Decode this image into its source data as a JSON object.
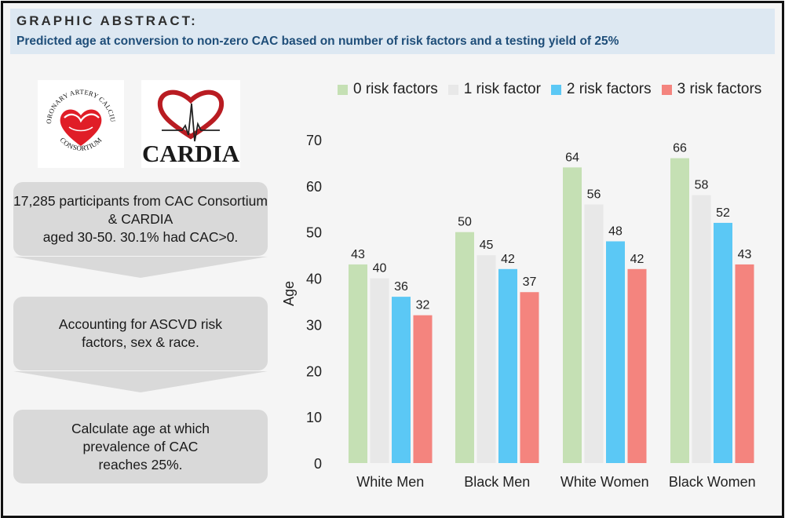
{
  "header": {
    "title": "GRAPHIC ABSTRACT:",
    "subtitle": "Predicted age at conversion to non-zero CAC based on number of risk factors and a testing yield of 25%"
  },
  "logos": {
    "cac_consortium": {
      "text_top": "CORONARY ARTERY CALCIUM",
      "text_bottom": "CONSORTIUM"
    },
    "cardia": {
      "text": "CARDIA"
    }
  },
  "steps": [
    "17,285 participants from CAC Consortium & CARDIA\naged 30-50. 30.1% had CAC>0.",
    "Accounting for ASCVD risk\nfactors, sex & race.",
    "Calculate age at which\nprevalence of CAC\nreaches 25%."
  ],
  "colors": {
    "header_bg": "#dde8f2",
    "subtitle": "#1f4e79",
    "step_bg": "#d9d9d9",
    "series": [
      "#c5e0b4",
      "#e8e8e8",
      "#5bc8f5",
      "#f4847e"
    ]
  },
  "chart_data": {
    "type": "bar",
    "title": "",
    "xlabel": "",
    "ylabel": "Age",
    "ylim": [
      0,
      70
    ],
    "yticks": [
      0,
      10,
      20,
      30,
      40,
      50,
      60,
      70
    ],
    "categories": [
      "White Men",
      "Black Men",
      "White Women",
      "Black Women"
    ],
    "series": [
      {
        "name": "0 risk factors",
        "values": [
          43,
          50,
          64,
          66
        ]
      },
      {
        "name": "1 risk factor",
        "values": [
          40,
          45,
          56,
          58
        ]
      },
      {
        "name": "2 risk factors",
        "values": [
          36,
          42,
          48,
          52
        ]
      },
      {
        "name": "3 risk factors",
        "values": [
          32,
          37,
          42,
          43
        ]
      }
    ],
    "legend_position": "top",
    "grid": false
  }
}
